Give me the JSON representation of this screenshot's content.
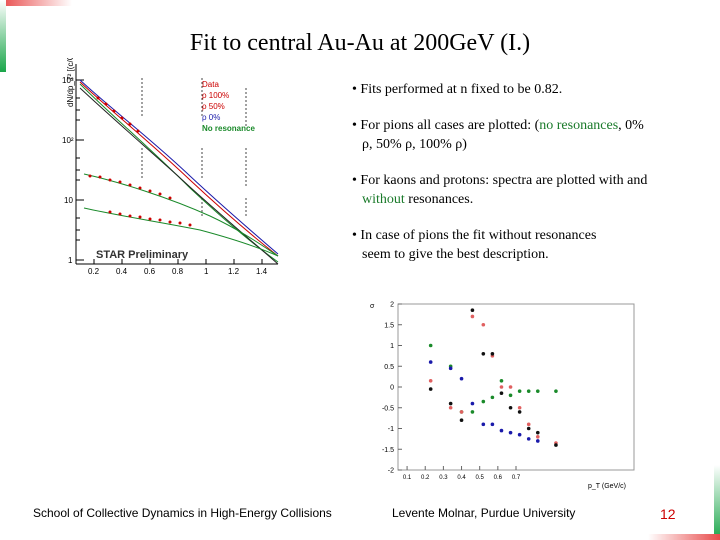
{
  "title": "Fit to central Au-Au at 200GeV (I.)",
  "bullets": {
    "b1": "• Fits performed at n fixed to be 0.82.",
    "b2_pre": "• For pions all cases are plotted: (",
    "b2_green": "no resonances",
    "b2_post": ", 0%",
    "b2_line2": "ρ, 50% ρ, 100% ρ)",
    "b3_line1": "• For kaons and protons: spectra are plotted with and",
    "b3_green": "without",
    "b3_post": " resonances.",
    "b4_line1": "• In case of pions the fit without resonances",
    "b4_line2": "seem to give the best description."
  },
  "spectra_plot": {
    "ylabel": "dN/dp_T² [(c/GeV)²]",
    "yticks": [
      "10³",
      "10²",
      "10",
      "1"
    ],
    "xticks": [
      "0.2",
      "0.4",
      "0.6",
      "0.8",
      "1",
      "1.2",
      "1.4"
    ],
    "legend": [
      {
        "label": "Data",
        "color": "#cc0000"
      },
      {
        "label": "ρ 100%",
        "color": "#cc0000"
      },
      {
        "label": "ρ 50%",
        "color": "#cc0000"
      },
      {
        "label": "ρ 0%",
        "color": "#1a1aaa"
      },
      {
        "label": "No resonance",
        "color": "#1a8a2a"
      }
    ],
    "watermark": "STAR Preliminary"
  },
  "colors": {
    "accent_red": "#cc0000",
    "green": "#1a7a2a",
    "blue": "#1a1aaa"
  },
  "chart_data": {
    "type": "scatter",
    "xlabel": "p_T (GeV/c)",
    "ylabel": "σ",
    "xticks": [
      "0.1",
      "0.2",
      "0.3",
      "0.4",
      "0.5",
      "0.6",
      "0.7"
    ],
    "yticks": [
      "2",
      "1.5",
      "1",
      "0.5",
      "0",
      "-0.5",
      "-1",
      "-1.5",
      "-2"
    ],
    "xlim": [
      0.05,
      1.35
    ],
    "ylim": [
      -2,
      2
    ],
    "series": [
      {
        "color": "#1a8a2a",
        "points": [
          [
            0.23,
            1.0
          ],
          [
            0.34,
            0.5
          ],
          [
            0.4,
            -0.6
          ],
          [
            0.46,
            -0.6
          ],
          [
            0.52,
            -0.35
          ],
          [
            0.57,
            -0.25
          ],
          [
            0.62,
            0.15
          ],
          [
            0.67,
            -0.2
          ],
          [
            0.72,
            -0.1
          ],
          [
            0.77,
            -0.1
          ],
          [
            0.82,
            -0.1
          ],
          [
            0.92,
            -0.1
          ]
        ]
      },
      {
        "color": "#1a1aaa",
        "points": [
          [
            0.23,
            0.6
          ],
          [
            0.34,
            0.45
          ],
          [
            0.4,
            0.2
          ],
          [
            0.46,
            -0.4
          ],
          [
            0.52,
            -0.9
          ],
          [
            0.57,
            -0.9
          ],
          [
            0.62,
            -1.05
          ],
          [
            0.67,
            -1.1
          ],
          [
            0.72,
            -1.15
          ],
          [
            0.77,
            -1.25
          ],
          [
            0.82,
            -1.3
          ]
        ]
      },
      {
        "color": "#e06060",
        "points": [
          [
            0.23,
            0.15
          ],
          [
            0.34,
            -0.5
          ],
          [
            0.4,
            -0.6
          ],
          [
            0.46,
            1.7
          ],
          [
            0.52,
            1.5
          ],
          [
            0.57,
            0.75
          ],
          [
            0.62,
            0.0
          ],
          [
            0.67,
            0.0
          ],
          [
            0.72,
            -0.5
          ],
          [
            0.77,
            -0.9
          ],
          [
            0.82,
            -1.2
          ],
          [
            0.92,
            -1.35
          ]
        ]
      },
      {
        "color": "#111111",
        "points": [
          [
            0.23,
            -0.05
          ],
          [
            0.34,
            -0.4
          ],
          [
            0.4,
            -0.8
          ],
          [
            0.46,
            1.85
          ],
          [
            0.52,
            0.8
          ],
          [
            0.57,
            0.8
          ],
          [
            0.62,
            -0.15
          ],
          [
            0.67,
            -0.5
          ],
          [
            0.72,
            -0.6
          ],
          [
            0.77,
            -1.0
          ],
          [
            0.82,
            -1.1
          ],
          [
            0.92,
            -1.4
          ]
        ]
      }
    ]
  },
  "footer": {
    "left": "School of Collective Dynamics in High-Energy Collisions",
    "center": "Levente Molnar, Purdue University",
    "page": "12"
  }
}
